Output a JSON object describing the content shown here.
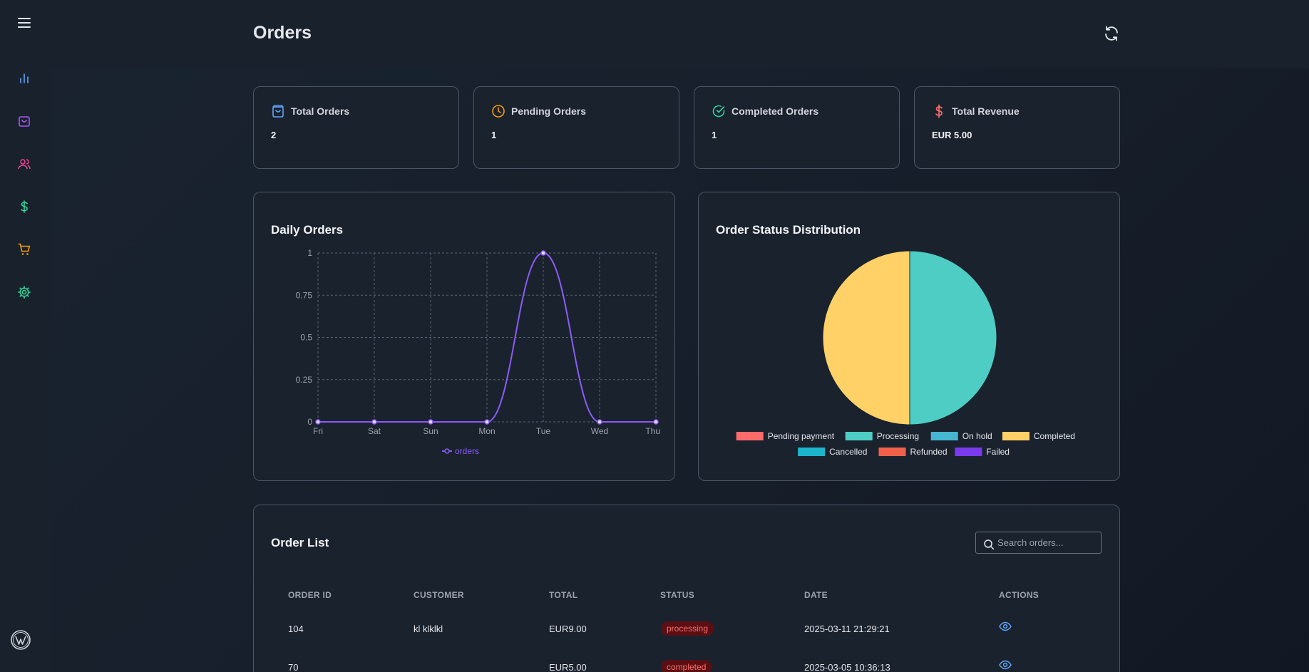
{
  "header": {
    "title": "Orders"
  },
  "stats": [
    {
      "label": "Total Orders",
      "value": "2",
      "icon": "shopping-bag-icon",
      "color": "#60a5fa"
    },
    {
      "label": "Pending Orders",
      "value": "1",
      "icon": "clock-icon",
      "color": "#f59e0b"
    },
    {
      "label": "Completed Orders",
      "value": "1",
      "icon": "check-circle-icon",
      "color": "#34d399"
    },
    {
      "label": "Total Revenue",
      "value": "EUR 5.00",
      "icon": "dollar-icon",
      "color": "#f87171"
    }
  ],
  "daily_chart": {
    "title": "Daily Orders",
    "legend": "orders"
  },
  "status_chart": {
    "title": "Order Status Distribution",
    "legend": [
      {
        "label": "Pending payment",
        "color": "#ff6b6b"
      },
      {
        "label": "Processing",
        "color": "#4ecdc4"
      },
      {
        "label": "On hold",
        "color": "#45b7d1"
      },
      {
        "label": "Completed",
        "color": "#ffd166"
      },
      {
        "label": "Cancelled",
        "color": "#1bb6cc"
      },
      {
        "label": "Refunded",
        "color": "#f1614a"
      },
      {
        "label": "Failed",
        "color": "#7c3aed"
      }
    ]
  },
  "chart_data": [
    {
      "type": "line",
      "title": "Daily Orders",
      "categories": [
        "Fri",
        "Sat",
        "Sun",
        "Mon",
        "Tue",
        "Wed",
        "Thu"
      ],
      "series": [
        {
          "name": "orders",
          "values": [
            0,
            0,
            0,
            0,
            1,
            0,
            0
          ],
          "color": "#8b5cf6"
        }
      ],
      "ylim": [
        0,
        1
      ],
      "yticks": [
        "0",
        "0.25",
        "0.5",
        "0.75",
        "1"
      ],
      "grid": true,
      "legend": "bottom"
    },
    {
      "type": "pie",
      "title": "Order Status Distribution",
      "labels": [
        "Pending payment",
        "Processing",
        "On hold",
        "Completed",
        "Cancelled",
        "Refunded",
        "Failed"
      ],
      "values": [
        0,
        1,
        0,
        1,
        0,
        0,
        0
      ],
      "legend": "bottom"
    }
  ],
  "order_list": {
    "title": "Order List",
    "search_placeholder": "Search orders...",
    "columns": [
      "ORDER ID",
      "CUSTOMER",
      "TOTAL",
      "STATUS",
      "DATE",
      "ACTIONS"
    ],
    "rows": [
      {
        "id": "104",
        "customer": "kl klklkl",
        "total": "EUR9.00",
        "status": "processing",
        "date": "2025-03-11 21:29:21"
      },
      {
        "id": "70",
        "customer": "",
        "total": "EUR5.00",
        "status": "completed",
        "date": "2025-03-05 10:36:13"
      }
    ]
  },
  "sidebar": {
    "items": [
      {
        "icon": "bar-chart-icon",
        "color": "#60a5fa"
      },
      {
        "icon": "shopping-bag-icon",
        "color": "#a855f7"
      },
      {
        "icon": "users-icon",
        "color": "#ec4899"
      },
      {
        "icon": "dollar-icon",
        "color": "#34d399"
      },
      {
        "icon": "cart-icon",
        "color": "#f59e0b"
      },
      {
        "icon": "gear-icon",
        "color": "#34d399"
      }
    ]
  }
}
